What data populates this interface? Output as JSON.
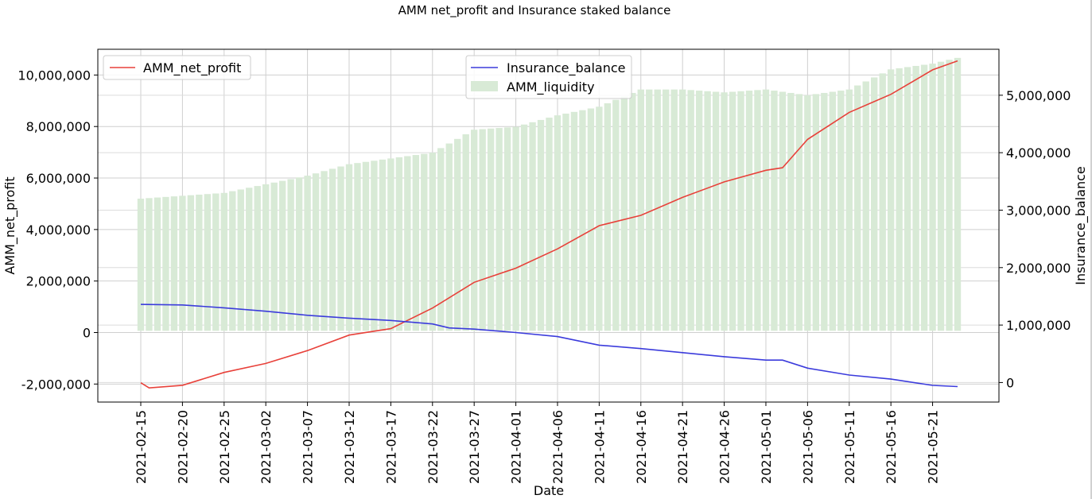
{
  "chart_data": {
    "type": "line",
    "title": "AMM net_profit and Insurance staked balance",
    "xlabel": "Date",
    "ylabel_left": "AMM_net_profit",
    "ylabel_right": "Insurance_balance",
    "x_start": "2021-02-15",
    "x_end": "2021-05-24",
    "xticks": [
      "2021-02-15",
      "2021-02-20",
      "2021-02-25",
      "2021-03-02",
      "2021-03-07",
      "2021-03-12",
      "2021-03-17",
      "2021-03-22",
      "2021-03-27",
      "2021-04-01",
      "2021-04-06",
      "2021-04-11",
      "2021-04-16",
      "2021-04-21",
      "2021-04-26",
      "2021-05-01",
      "2021-05-06",
      "2021-05-11",
      "2021-05-16",
      "2021-05-21"
    ],
    "ylim_left": [
      -2700000,
      11000000
    ],
    "yticks_left": [
      -2000000,
      0,
      2000000,
      4000000,
      6000000,
      8000000,
      10000000
    ],
    "yticks_left_labels": [
      "-2,000,000",
      "0",
      "2,000,000",
      "4,000,000",
      "6,000,000",
      "8,000,000",
      "10,000,000"
    ],
    "ylim_right": [
      -340000,
      5800000
    ],
    "yticks_right": [
      0,
      1000000,
      2000000,
      3000000,
      4000000,
      5000000
    ],
    "yticks_right_labels": [
      "0",
      "1,000,000",
      "2,000,000",
      "3,000,000",
      "4,000,000",
      "5,000,000"
    ],
    "grid": true,
    "legend_left": {
      "position": "top-left",
      "entries": [
        "AMM_net_profit"
      ]
    },
    "legend_right": {
      "position": "top-center",
      "entries": [
        "Insurance_balance",
        "AMM_liquidity"
      ]
    },
    "colors": {
      "net_profit": "#e8413a",
      "insurance": "#3b3bdc",
      "liquidity": "#d8ead6"
    },
    "series": [
      {
        "name": "AMM_net_profit",
        "axis": "left",
        "kind": "line",
        "x": [
          "2021-02-15",
          "2021-02-16",
          "2021-02-20",
          "2021-02-25",
          "2021-03-02",
          "2021-03-07",
          "2021-03-12",
          "2021-03-17",
          "2021-03-22",
          "2021-03-27",
          "2021-04-01",
          "2021-04-06",
          "2021-04-11",
          "2021-04-16",
          "2021-04-21",
          "2021-04-26",
          "2021-05-01",
          "2021-05-03",
          "2021-05-06",
          "2021-05-11",
          "2021-05-16",
          "2021-05-21",
          "2021-05-24"
        ],
        "values": [
          -1950000,
          -2150000,
          -2050000,
          -1550000,
          -1200000,
          -700000,
          -100000,
          150000,
          950000,
          1950000,
          2500000,
          3250000,
          4150000,
          4550000,
          5250000,
          5850000,
          6300000,
          6400000,
          7500000,
          8550000,
          9250000,
          10200000,
          10550000
        ]
      },
      {
        "name": "Insurance_balance",
        "axis": "right",
        "kind": "line",
        "x": [
          "2021-02-15",
          "2021-02-20",
          "2021-02-25",
          "2021-03-02",
          "2021-03-07",
          "2021-03-12",
          "2021-03-17",
          "2021-03-22",
          "2021-03-24",
          "2021-03-27",
          "2021-04-01",
          "2021-04-06",
          "2021-04-11",
          "2021-04-16",
          "2021-04-21",
          "2021-04-26",
          "2021-05-01",
          "2021-05-03",
          "2021-05-06",
          "2021-05-11",
          "2021-05-16",
          "2021-05-21",
          "2021-05-24"
        ],
        "values": [
          1360000,
          1350000,
          1300000,
          1240000,
          1170000,
          1120000,
          1080000,
          1020000,
          950000,
          930000,
          870000,
          800000,
          650000,
          590000,
          520000,
          450000,
          390000,
          390000,
          250000,
          130000,
          60000,
          -50000,
          -70000
        ]
      },
      {
        "name": "AMM_liquidity",
        "axis": "right",
        "kind": "bar",
        "x": [
          "2021-02-15",
          "2021-02-20",
          "2021-02-25",
          "2021-03-02",
          "2021-03-07",
          "2021-03-12",
          "2021-03-17",
          "2021-03-22",
          "2021-03-27",
          "2021-04-01",
          "2021-04-06",
          "2021-04-11",
          "2021-04-16",
          "2021-04-21",
          "2021-04-26",
          "2021-05-01",
          "2021-05-06",
          "2021-05-11",
          "2021-05-16",
          "2021-05-21",
          "2021-05-24"
        ],
        "values": [
          3200000,
          3250000,
          3300000,
          3450000,
          3600000,
          3800000,
          3900000,
          4000000,
          4400000,
          4450000,
          4650000,
          4800000,
          5100000,
          5100000,
          5050000,
          5100000,
          5000000,
          5100000,
          5450000,
          5550000,
          5650000
        ]
      }
    ]
  }
}
